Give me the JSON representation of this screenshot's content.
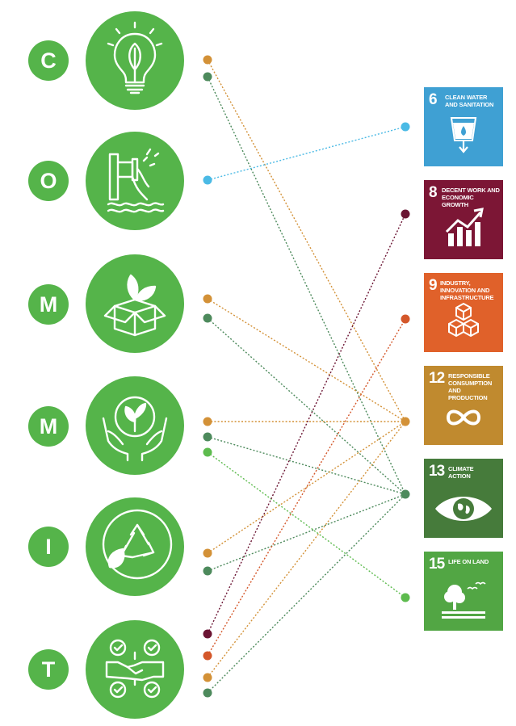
{
  "colors": {
    "green": "#55b44a",
    "orange": "#d39137",
    "darkgreen": "#4d8a5c",
    "blue": "#4bbae5",
    "maroon": "#6b1433",
    "red": "#d4572a",
    "lightgreen": "#5dbb4e"
  },
  "rows": [
    {
      "letter": "C",
      "icon": "lightbulb-leaf-icon"
    },
    {
      "letter": "O",
      "icon": "pipe-water-icon"
    },
    {
      "letter": "M",
      "icon": "box-leaves-icon"
    },
    {
      "letter": "M",
      "icon": "hands-globe-icon"
    },
    {
      "letter": "I",
      "icon": "recycle-leaf-icon"
    },
    {
      "letter": "T",
      "icon": "handshake-checks-icon"
    }
  ],
  "sdgs": [
    {
      "number": "6",
      "title": "Clean water and sanitation",
      "color": "#3fa0d3",
      "icon": "water-glass-icon"
    },
    {
      "number": "8",
      "title": "Decent work and economic growth",
      "color": "#7c1635",
      "icon": "growth-chart-icon"
    },
    {
      "number": "9",
      "title": "Industry, innovation and infrastructure",
      "color": "#e0612a",
      "icon": "cubes-icon"
    },
    {
      "number": "12",
      "title": "Responsible consumption and production",
      "color": "#c08a2f",
      "icon": "infinity-icon"
    },
    {
      "number": "13",
      "title": "Climate action",
      "color": "#467b3b",
      "icon": "eye-globe-icon"
    },
    {
      "number": "15",
      "title": "Life on land",
      "color": "#52a644",
      "icon": "tree-birds-icon"
    }
  ],
  "links": [
    {
      "row": 0,
      "sdg": 3,
      "color": "orange"
    },
    {
      "row": 0,
      "sdg": 4,
      "color": "darkgreen"
    },
    {
      "row": 1,
      "sdg": 0,
      "color": "blue"
    },
    {
      "row": 2,
      "sdg": 3,
      "color": "orange"
    },
    {
      "row": 2,
      "sdg": 4,
      "color": "darkgreen"
    },
    {
      "row": 3,
      "sdg": 3,
      "color": "orange"
    },
    {
      "row": 3,
      "sdg": 4,
      "color": "darkgreen"
    },
    {
      "row": 3,
      "sdg": 5,
      "color": "lightgreen"
    },
    {
      "row": 4,
      "sdg": 3,
      "color": "orange"
    },
    {
      "row": 4,
      "sdg": 4,
      "color": "darkgreen"
    },
    {
      "row": 5,
      "sdg": 1,
      "color": "maroon"
    },
    {
      "row": 5,
      "sdg": 2,
      "color": "red"
    },
    {
      "row": 5,
      "sdg": 3,
      "color": "orange"
    },
    {
      "row": 5,
      "sdg": 4,
      "color": "darkgreen"
    }
  ]
}
